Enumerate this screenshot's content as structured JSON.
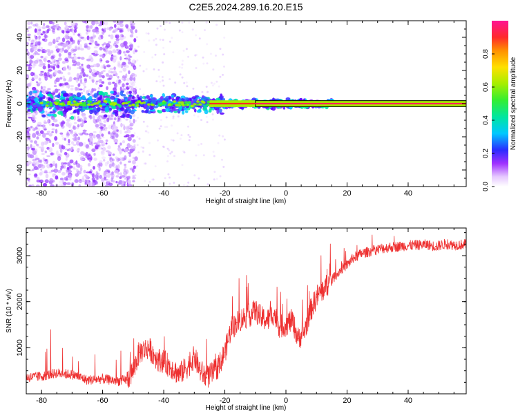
{
  "title": "C2E5.2024.289.16.20.E15",
  "chart_data": [
    {
      "type": "heatmap",
      "xlabel": "Height of straight line (km)",
      "ylabel": "Frequency (Hz)",
      "xlim": [
        -85,
        59
      ],
      "ylim": [
        -50,
        50
      ],
      "xticks": [
        -80,
        -60,
        -40,
        -20,
        0,
        20,
        40
      ],
      "yticks": [
        -40,
        -20,
        0,
        20,
        40
      ],
      "colorbar": {
        "label": "Normalized spectral amplitude",
        "range": [
          0.0,
          1.0
        ],
        "ticks": [
          0.0,
          0.2,
          0.4,
          0.6,
          0.8
        ]
      },
      "grid": false,
      "features": [
        {
          "desc": "central line",
          "x_range": [
            -85,
            59
          ],
          "frequency": 0
        },
        {
          "desc": "broadband scatter",
          "x_range": [
            -85,
            -50
          ],
          "frequency_range": [
            -50,
            50
          ]
        }
      ]
    },
    {
      "type": "line",
      "xlabel": "Height of straight line (km)",
      "ylabel": "SNR (10 * v/v)",
      "xlim": [
        -85,
        59
      ],
      "ylim": [
        0,
        3600
      ],
      "xticks": [
        -80,
        -60,
        -40,
        -20,
        0,
        20,
        40
      ],
      "yticks": [
        1000,
        2000,
        3000
      ],
      "grid": false,
      "color": "#ee3030",
      "series": [
        {
          "x": [
            -85,
            -80,
            -75,
            -70,
            -65,
            -60,
            -55,
            -52,
            -50,
            -48,
            -45,
            -42,
            -40,
            -37,
            -35,
            -32,
            -30,
            -28,
            -26,
            -24,
            -22,
            -20,
            -18,
            -16,
            -14,
            -12,
            -10,
            -8,
            -6,
            -4,
            -2,
            0,
            2,
            4,
            6,
            8,
            10,
            12,
            14,
            16,
            18,
            20,
            22,
            25,
            28,
            31,
            34,
            37,
            40,
            43,
            46,
            49,
            52,
            55,
            59
          ],
          "values": [
            350,
            380,
            450,
            420,
            300,
            320,
            280,
            300,
            500,
            900,
            1000,
            750,
            700,
            550,
            420,
            600,
            800,
            500,
            350,
            450,
            600,
            900,
            1400,
            1550,
            1650,
            1700,
            1800,
            1650,
            1600,
            1750,
            1450,
            1500,
            1600,
            1200,
            1350,
            1800,
            2100,
            2250,
            2400,
            2550,
            2700,
            2800,
            2950,
            3050,
            3100,
            3150,
            3180,
            3200,
            3220,
            3230,
            3240,
            3200,
            3250,
            3230,
            3250
          ]
        }
      ]
    }
  ]
}
